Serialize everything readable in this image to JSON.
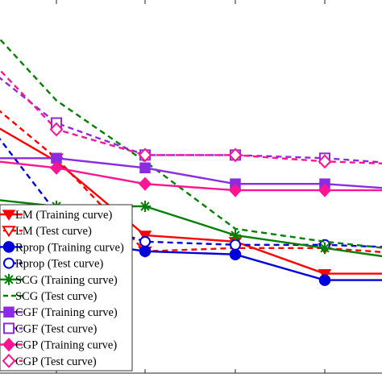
{
  "chart_data": {
    "type": "line",
    "x": [
      1,
      2,
      3,
      4,
      5,
      6
    ],
    "xtick_labels": [
      "",
      "",
      "",
      "",
      ""
    ],
    "ylim": [
      0,
      10
    ],
    "grid": false,
    "legend": "lower-left",
    "series": [
      {
        "name": "LM (Training curve)",
        "values": [
          8.2,
          6.6,
          4.3,
          4.1,
          3.1,
          3.1
        ],
        "color": "#ff0000",
        "dash": "solid",
        "marker": "triangle-down"
      },
      {
        "name": "LM (Test curve)",
        "values": [
          9.0,
          6.7,
          3.8,
          3.9,
          3.9,
          3.7
        ],
        "color": "#ff0000",
        "dash": "dashed",
        "marker": "triangle-down-open"
      },
      {
        "name": "Rprop (Training curve)",
        "values": [
          4.5,
          4.2,
          3.8,
          3.7,
          2.9,
          2.9
        ],
        "color": "#0000dd",
        "dash": "solid",
        "marker": "circle"
      },
      {
        "name": "Rprop (Test curve)",
        "values": [
          8.6,
          5.0,
          4.1,
          4.0,
          4.0,
          3.9
        ],
        "color": "#0000dd",
        "dash": "dashed",
        "marker": "circle-open"
      },
      {
        "name": "SCG (Training curve)",
        "values": [
          5.5,
          5.2,
          5.2,
          4.3,
          3.9,
          3.5
        ],
        "color": "#008000",
        "dash": "solid",
        "marker": "asterisk"
      },
      {
        "name": "SCG (Test curve)",
        "values": [
          11.5,
          8.5,
          6.6,
          4.5,
          4.1,
          3.8
        ],
        "color": "#008000",
        "dash": "dashed",
        "marker": "none"
      },
      {
        "name": "CGF (Training curve)",
        "values": [
          6.7,
          6.7,
          6.4,
          5.9,
          5.9,
          5.7
        ],
        "color": "#8b2be2",
        "dash": "solid",
        "marker": "square"
      },
      {
        "name": "CGF (Test curve)",
        "values": [
          10.0,
          7.8,
          6.8,
          6.8,
          6.7,
          6.5
        ],
        "color": "#8b2be2",
        "dash": "dashed",
        "marker": "square-open"
      },
      {
        "name": "CGP (Training curve)",
        "values": [
          6.7,
          6.4,
          5.9,
          5.7,
          5.7,
          5.7
        ],
        "color": "#ff1493",
        "dash": "solid",
        "marker": "diamond"
      },
      {
        "name": "CGP (Test curve)",
        "values": [
          10.5,
          7.6,
          6.8,
          6.8,
          6.6,
          6.5
        ],
        "color": "#ff1493",
        "dash": "dashed",
        "marker": "diamond-open"
      }
    ]
  }
}
